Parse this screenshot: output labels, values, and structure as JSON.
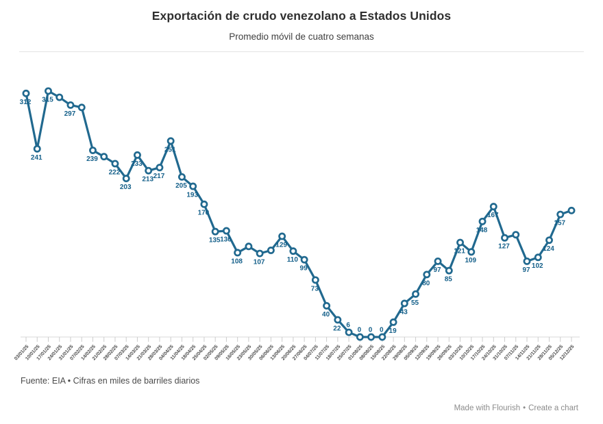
{
  "header": {
    "title": "Exportación de crudo venezolano a Estados Unidos",
    "subtitle": "Promedio móvil de cuatro semanas"
  },
  "footer": {
    "source": "Fuente: EIA • Cifras en miles de barriles diarios"
  },
  "credit": {
    "made_with": "Made with Flourish",
    "separator": "•",
    "create": "Create a chart"
  },
  "colors": {
    "line": "#21698f",
    "marker_fill": "#ffffff",
    "value_label": "#15608a",
    "axis": "#d9d9d9",
    "tick": "#cccccc",
    "date_label": "#4d4d4d"
  },
  "chart_data": {
    "type": "line",
    "title": "Exportación de crudo venezolano a Estados Unidos",
    "subtitle": "Promedio móvil de cuatro semanas",
    "xlabel": "",
    "ylabel": "miles de barriles diarios",
    "ylim": [
      0,
      350
    ],
    "grid": false,
    "legend": "none",
    "x": [
      "03/01/25",
      "10/01/25",
      "17/01/25",
      "24/01/25",
      "31/01/25",
      "07/02/25",
      "14/02/25",
      "21/02/25",
      "28/02/25",
      "07/03/25",
      "14/03/25",
      "21/03/25",
      "28/03/25",
      "04/04/25",
      "11/04/25",
      "18/04/25",
      "25/04/25",
      "02/05/25",
      "09/05/25",
      "16/05/25",
      "23/05/25",
      "30/05/25",
      "06/06/25",
      "13/06/25",
      "20/06/25",
      "27/06/25",
      "04/07/25",
      "11/07/25",
      "18/07/25",
      "25/07/25",
      "01/08/25",
      "08/08/25",
      "15/08/25",
      "22/08/25",
      "29/08/25",
      "05/09/25",
      "12/09/25",
      "19/09/25",
      "26/09/25",
      "03/10/25",
      "10/10/25",
      "17/10/25",
      "24/10/25",
      "31/10/25",
      "07/11/25",
      "14/11/25",
      "21/11/25",
      "28/11/25",
      "05/12/25",
      "12/12/25"
    ],
    "values": [
      312,
      241,
      315,
      307,
      297,
      294,
      239,
      231,
      222,
      203,
      233,
      213,
      217,
      251,
      205,
      193,
      170,
      135,
      136,
      108,
      116,
      107,
      111,
      129,
      110,
      99,
      73,
      40,
      22,
      6,
      0,
      0,
      0,
      19,
      43,
      55,
      80,
      97,
      85,
      121,
      109,
      148,
      167,
      127,
      131,
      97,
      102,
      124,
      157,
      162
    ],
    "hidden_value_label_indices": [
      3,
      5,
      7,
      20,
      22,
      44,
      49
    ],
    "value_labels_above_indices": [
      29,
      30,
      31,
      32
    ]
  }
}
